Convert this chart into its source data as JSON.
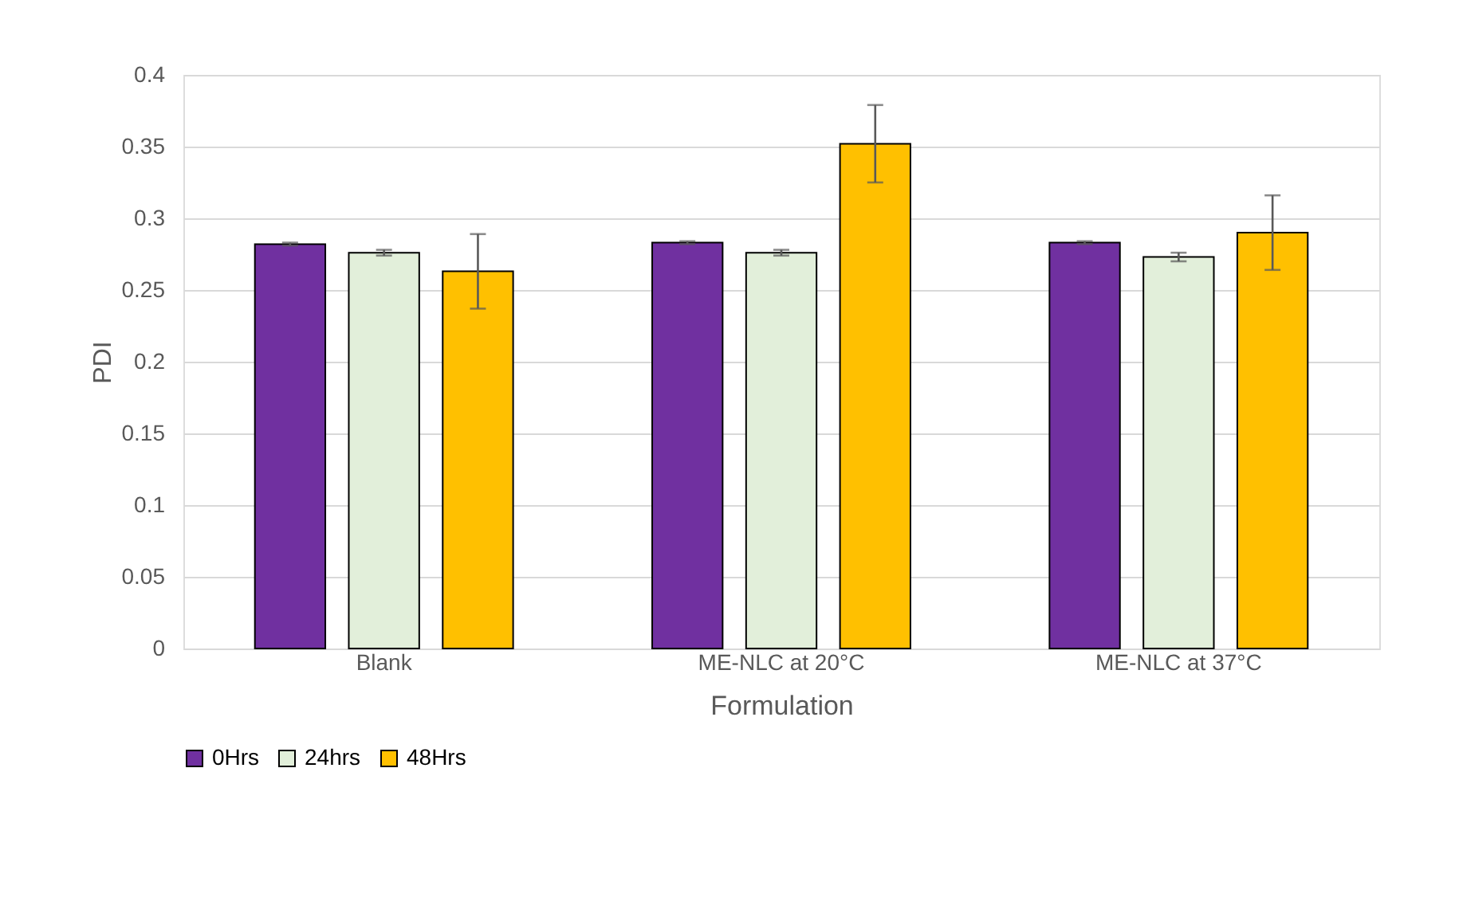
{
  "chart_data": {
    "type": "bar",
    "xlabel": "Formulation",
    "ylabel": "PDI",
    "categories": [
      "Blank",
      "ME-NLC at 20°C",
      "ME-NLC at 37°C"
    ],
    "series": [
      {
        "name": "0Hrs",
        "color": "#7030a0",
        "values": [
          0.282,
          0.283,
          0.283
        ],
        "errors": [
          0.001,
          0.001,
          0.001
        ]
      },
      {
        "name": "24hrs",
        "color": "#e2efda",
        "values": [
          0.276,
          0.276,
          0.273
        ],
        "errors": [
          0.002,
          0.002,
          0.003
        ]
      },
      {
        "name": "48Hrs",
        "color": "#ffc000",
        "values": [
          0.263,
          0.352,
          0.29
        ],
        "errors": [
          0.026,
          0.027,
          0.026
        ]
      }
    ],
    "ylim": [
      0,
      0.4
    ],
    "yticks": [
      {
        "value": 0,
        "label": "0"
      },
      0.05,
      {
        "value": 0.1,
        "label": "0.1"
      },
      0.15,
      {
        "value": 0.2,
        "label": "0.2"
      },
      0.25,
      {
        "value": 0.3,
        "label": "0.3"
      },
      0.35,
      {
        "value": 0.4,
        "label": "0.4"
      }
    ],
    "grid": "y",
    "legend": "bottom"
  }
}
